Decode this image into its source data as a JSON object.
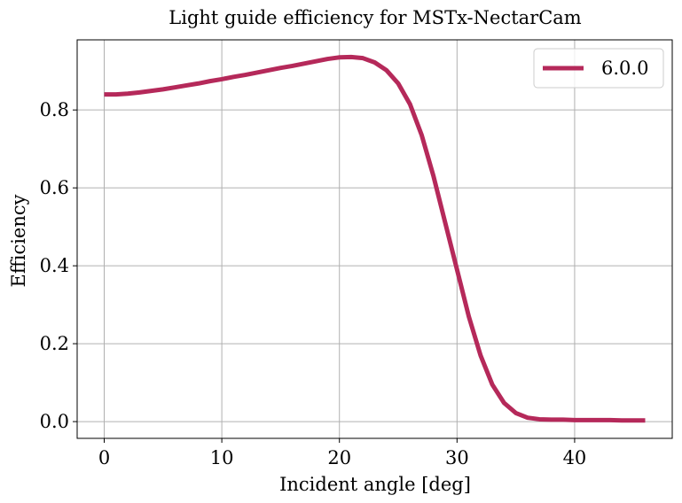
{
  "chart_data": {
    "type": "line",
    "title": "Light guide efficiency for MSTx-NectarCam",
    "xlabel": "Incident angle [deg]",
    "ylabel": "Efficiency",
    "xlim": [
      -2.3,
      48.3
    ],
    "ylim": [
      -0.043,
      0.98
    ],
    "xticks": [
      0,
      10,
      20,
      30,
      40
    ],
    "xtick_labels": [
      "0",
      "10",
      "20",
      "30",
      "40"
    ],
    "yticks": [
      0.0,
      0.2,
      0.4,
      0.6,
      0.8
    ],
    "ytick_labels": [
      "0.0",
      "0.2",
      "0.4",
      "0.6",
      "0.8"
    ],
    "grid": true,
    "legend_position": "top-right",
    "series": [
      {
        "name": "6.0.0",
        "color": "#b5295a",
        "x": [
          0,
          1,
          2,
          3,
          4,
          5,
          6,
          7,
          8,
          9,
          10,
          11,
          12,
          13,
          14,
          15,
          16,
          17,
          18,
          19,
          20,
          21,
          22,
          23,
          24,
          25,
          26,
          27,
          28,
          29,
          30,
          31,
          32,
          33,
          34,
          35,
          36,
          37,
          38,
          39,
          40,
          41,
          42,
          43,
          44,
          45,
          46
        ],
        "y": [
          0.84,
          0.84,
          0.842,
          0.845,
          0.849,
          0.853,
          0.858,
          0.863,
          0.868,
          0.874,
          0.879,
          0.885,
          0.89,
          0.896,
          0.902,
          0.908,
          0.913,
          0.919,
          0.925,
          0.931,
          0.935,
          0.936,
          0.933,
          0.922,
          0.902,
          0.868,
          0.815,
          0.735,
          0.63,
          0.51,
          0.39,
          0.27,
          0.17,
          0.095,
          0.048,
          0.022,
          0.01,
          0.006,
          0.005,
          0.005,
          0.004,
          0.004,
          0.004,
          0.004,
          0.003,
          0.003,
          0.003
        ]
      }
    ]
  }
}
